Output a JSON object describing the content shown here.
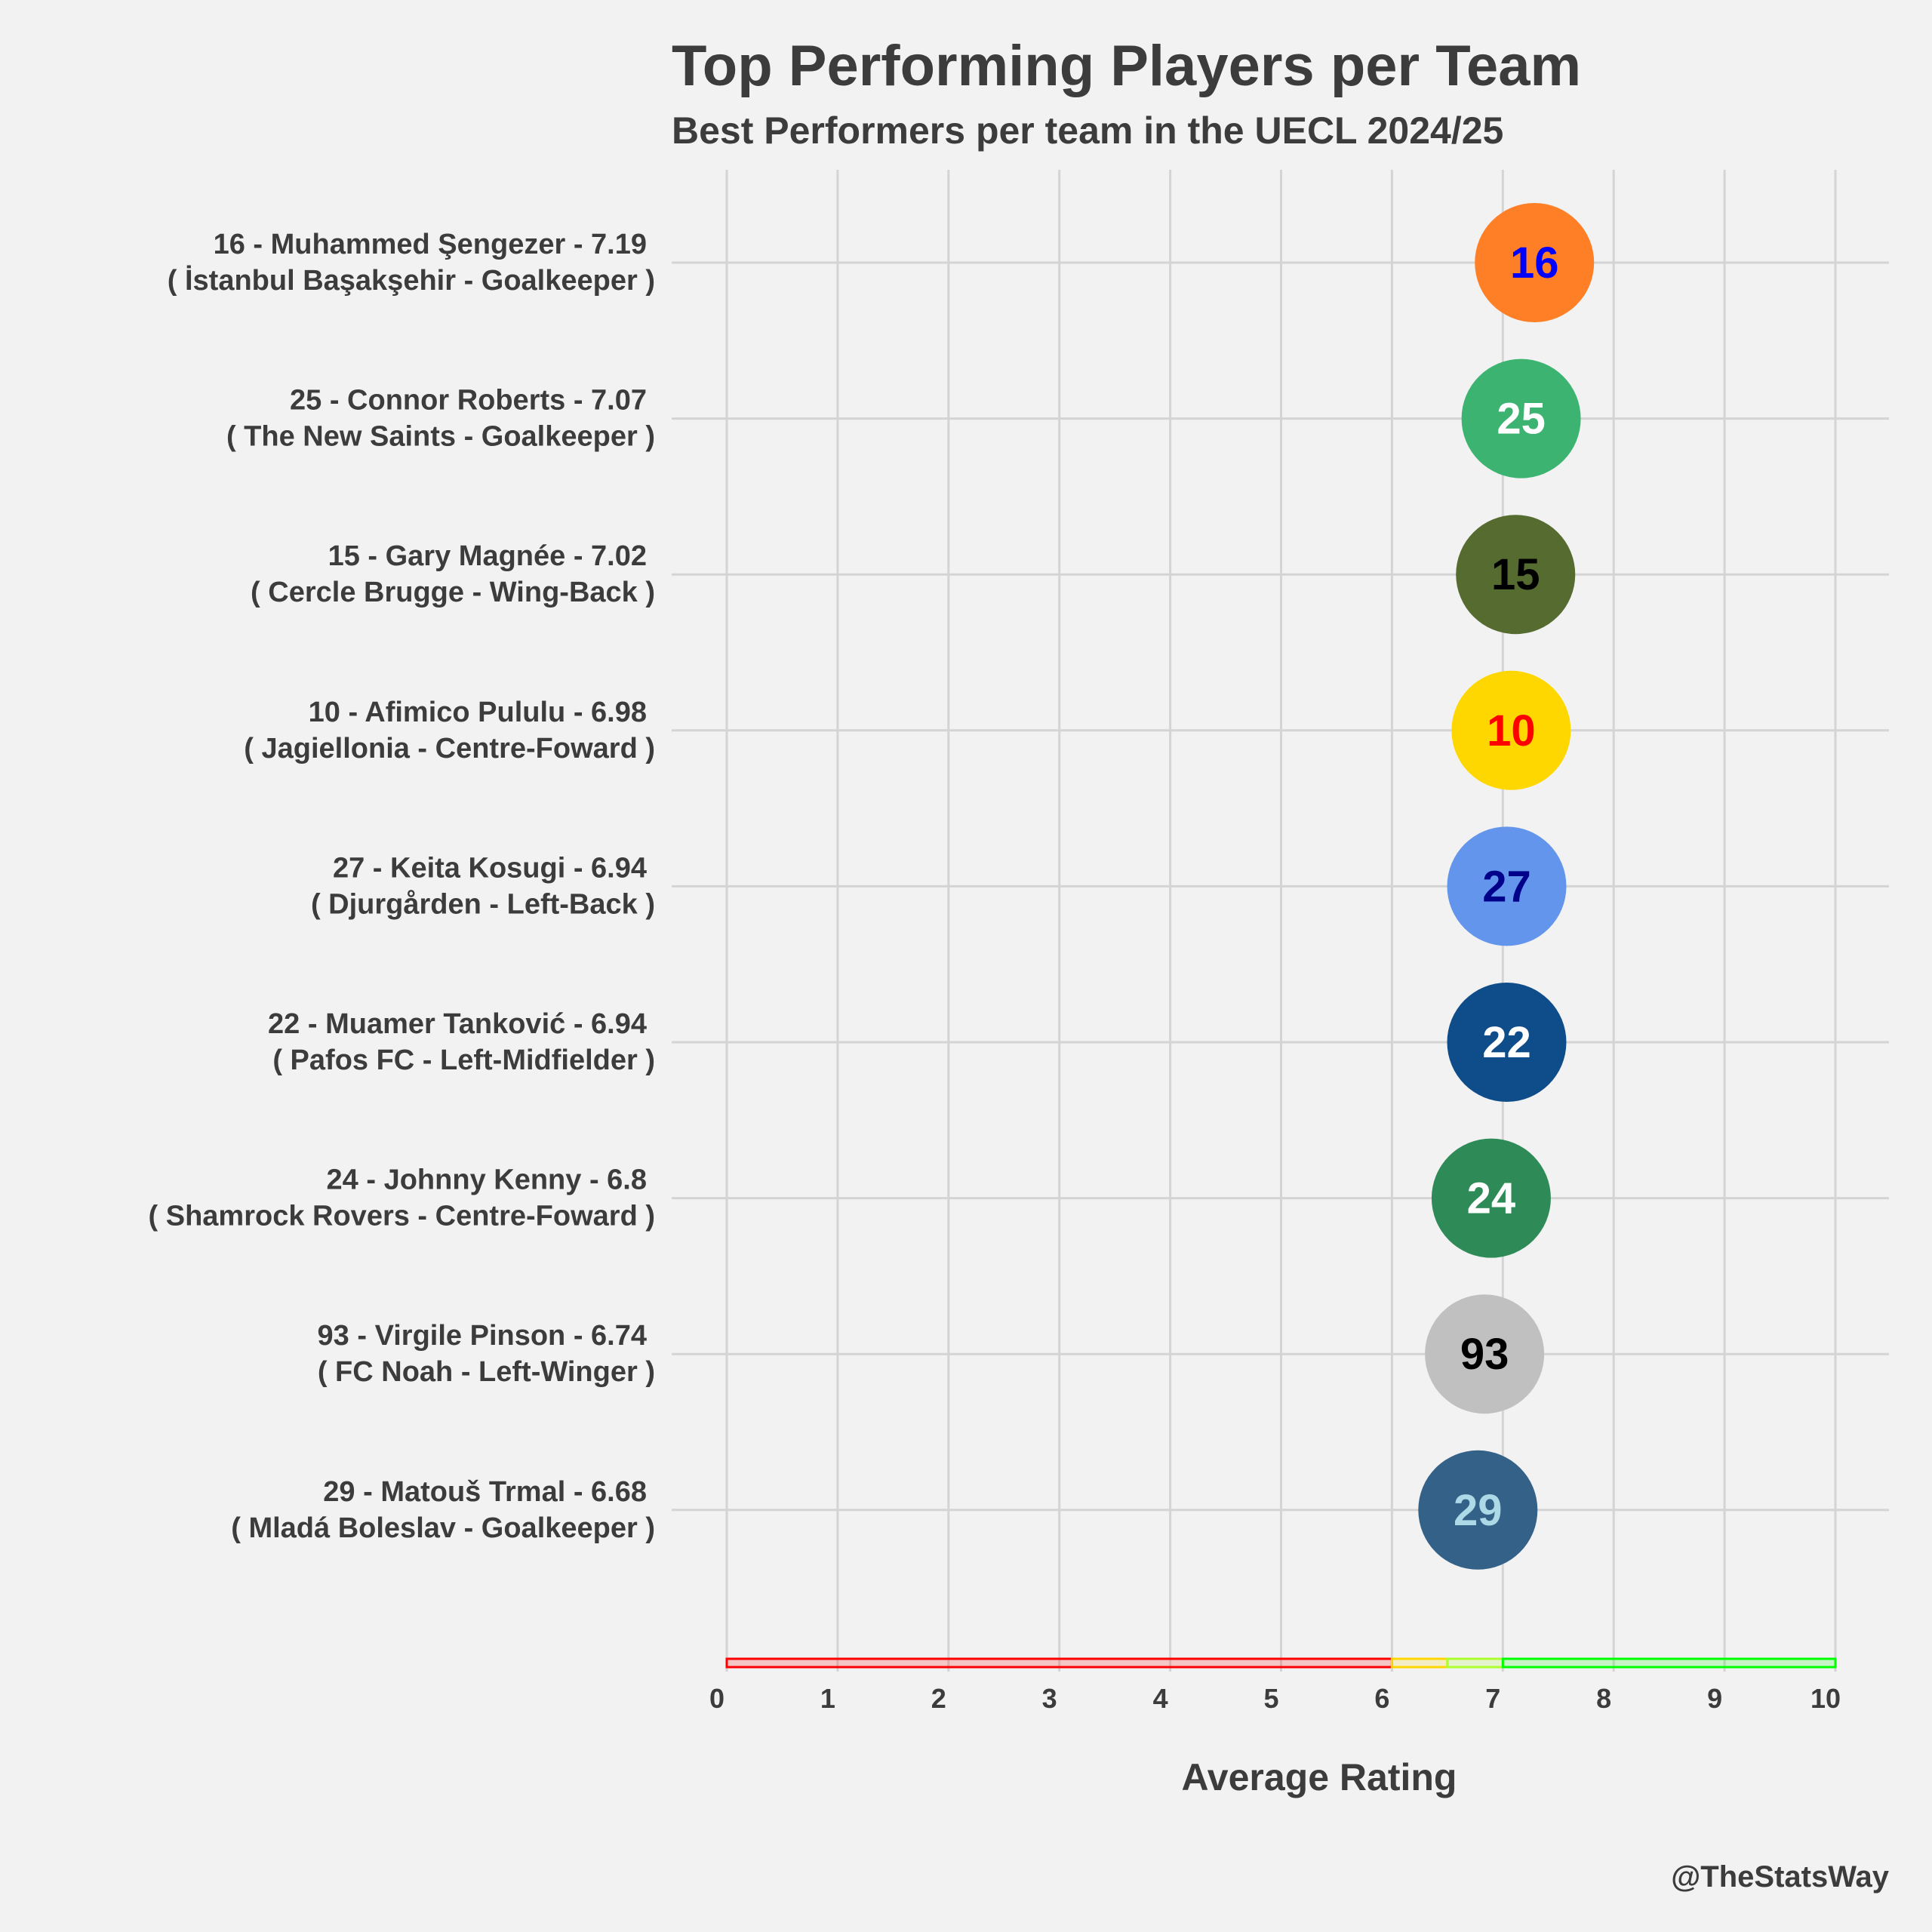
{
  "chart_data": {
    "type": "scatter",
    "title": "Top Performing Players per Team",
    "subtitle": "Best Performers per team in the UECL 2024/25",
    "xlabel": "Average Rating",
    "xlim": [
      0,
      10
    ],
    "xticks": [
      "0",
      "1",
      "2",
      "3",
      "4",
      "5",
      "6",
      "7",
      "8",
      "9",
      "10"
    ],
    "grid": true,
    "credit": "@TheStatsWay",
    "rating_bands": [
      {
        "from": 0,
        "to": 6,
        "color": "#ff0000"
      },
      {
        "from": 6,
        "to": 6.5,
        "color": "#ffd700"
      },
      {
        "from": 6.5,
        "to": 7,
        "color": "#adff2f"
      },
      {
        "from": 7,
        "to": 10,
        "color": "#00ff00"
      }
    ],
    "points": [
      {
        "label": "16 - Muhammed Şengezer - 7.19",
        "sublabel": "( İstanbul Başakşehir - Goalkeeper )",
        "number": "16",
        "rating": 7.19,
        "fill": "#ff7f27",
        "text_color": "#0000ff"
      },
      {
        "label": "25 - Connor Roberts - 7.07",
        "sublabel": "( The New Saints - Goalkeeper )",
        "number": "25",
        "rating": 7.07,
        "fill": "#3cb371",
        "text_color": "#ffffff"
      },
      {
        "label": "15 - Gary Magnée - 7.02",
        "sublabel": "( Cercle Brugge - Wing-Back )",
        "number": "15",
        "rating": 7.02,
        "fill": "#556b2f",
        "text_color": "#000000"
      },
      {
        "label": "10 - Afimico Pululu - 6.98",
        "sublabel": "( Jagiellonia - Centre-Foward )",
        "number": "10",
        "rating": 6.98,
        "fill": "#ffd700",
        "text_color": "#ff0000"
      },
      {
        "label": "27 - Keita Kosugi - 6.94",
        "sublabel": "( Djurgården - Left-Back )",
        "number": "27",
        "rating": 6.94,
        "fill": "#6495ed",
        "text_color": "#00008b"
      },
      {
        "label": "22 - Muamer Tanković - 6.94",
        "sublabel": "( Pafos FC - Left-Midfielder )",
        "number": "22",
        "rating": 6.94,
        "fill": "#0f4c8a",
        "text_color": "#ffffff"
      },
      {
        "label": "24 - Johnny Kenny - 6.8",
        "sublabel": "( Shamrock Rovers - Centre-Foward )",
        "number": "24",
        "rating": 6.8,
        "fill": "#2e8b57",
        "text_color": "#ffffff"
      },
      {
        "label": "93 - Virgile Pinson - 6.74",
        "sublabel": "( FC Noah - Left-Winger )",
        "number": "93",
        "rating": 6.74,
        "fill": "#c0c0c0",
        "text_color": "#000000"
      },
      {
        "label": "29 - Matouš Trmal - 6.68",
        "sublabel": "( Mladá Boleslav - Goalkeeper )",
        "number": "29",
        "rating": 6.68,
        "fill": "#336188",
        "text_color": "#add8e6"
      }
    ]
  }
}
